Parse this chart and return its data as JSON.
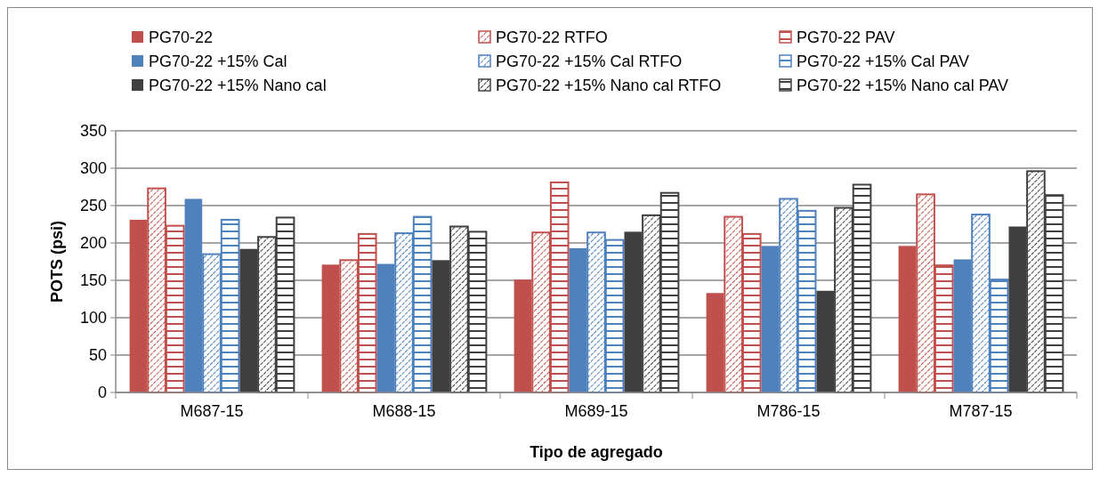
{
  "chart_data": {
    "type": "bar",
    "xlabel": "Tipo de agregado",
    "ylabel": "POTS (psi)",
    "categories": [
      "M687-15",
      "M688-15",
      "M689-15",
      "M786-15",
      "M787-15"
    ],
    "ylim": [
      0,
      350
    ],
    "yticks": [
      0,
      50,
      100,
      150,
      200,
      250,
      300,
      350
    ],
    "grid": "y",
    "legend": "top",
    "series": [
      {
        "name": "PG70-22",
        "color": "#c0504d",
        "values": [
          231,
          171,
          151,
          133,
          196
        ]
      },
      {
        "name": "PG70-22 RTFO",
        "color": "#c0504d",
        "values": [
          273,
          177,
          214,
          235,
          265
        ]
      },
      {
        "name": "PG70-22 PAV",
        "color": "#c0504d",
        "values": [
          223,
          212,
          281,
          212,
          170
        ]
      },
      {
        "name": "PG70-22 +15% Cal",
        "color": "#4f81bd",
        "values": [
          259,
          172,
          193,
          196,
          178
        ]
      },
      {
        "name": "PG70-22 +15% Cal RTFO",
        "color": "#4f81bd",
        "values": [
          185,
          213,
          214,
          259,
          238
        ]
      },
      {
        "name": "PG70-22 +15% Cal PAV",
        "color": "#4f81bd",
        "values": [
          231,
          235,
          204,
          243,
          151
        ]
      },
      {
        "name": "PG70-22 +15% Nano cal",
        "color": "#404040",
        "values": [
          192,
          177,
          215,
          136,
          222
        ]
      },
      {
        "name": "PG70-22 +15% Nano cal RTFO",
        "color": "#404040",
        "values": [
          208,
          222,
          237,
          247,
          296
        ]
      },
      {
        "name": "PG70-22 +15% Nano cal PAV",
        "color": "#404040",
        "values": [
          234,
          215,
          267,
          278,
          264
        ]
      }
    ]
  }
}
